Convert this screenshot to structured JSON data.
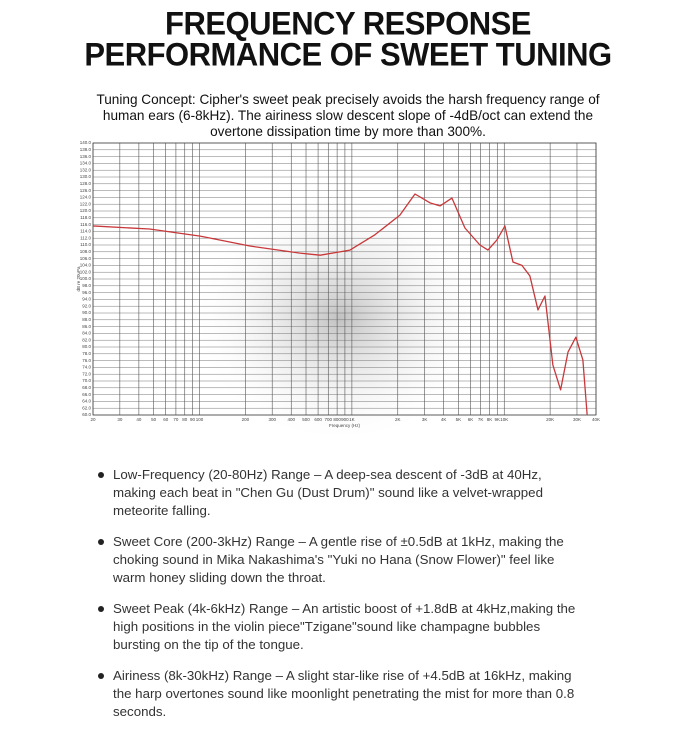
{
  "header": {
    "title_lines": [
      "FREQUENCY RESPONSE",
      "PERFORMANCE OF SWEET TUNING"
    ],
    "intro": "Tuning Concept: Cipher's sweet peak precisely avoids the harsh frequency range of human ears (6-8kHz). The airiness slow descent slope of -4dB/oct can extend the overtone dissipation time by more than 300%."
  },
  "chart_data": {
    "type": "line",
    "x_label": "Frequency (Hz)",
    "y_label": "dB re 20uPa",
    "x": [
      20,
      47,
      101,
      214,
      456,
      620,
      971,
      1416,
      2066,
      2595,
      3254,
      3790,
      4538,
      5520,
      6920,
      7815,
      8954,
      10100,
      11400,
      13060,
      14730,
      16640,
      18500,
      20850,
      23430,
      26200,
      29500,
      32800,
      35000
    ],
    "series": [
      {
        "color": "#c8383a",
        "values": [
          115.6,
          114.7,
          112.6,
          109.7,
          107.6,
          107,
          108.5,
          113,
          118.8,
          125,
          122.4,
          121.5,
          123.8,
          115,
          110,
          108.5,
          111.5,
          115.6,
          105,
          104,
          100.9,
          90.9,
          95,
          74.7,
          67.4,
          78.5,
          82.9,
          76.2,
          60
        ]
      }
    ],
    "log_x": true,
    "grid": true,
    "xlim": [
      20,
      40000
    ],
    "xticks": [
      20,
      30,
      40,
      50,
      60,
      70,
      80,
      90,
      100,
      200,
      300,
      400,
      500,
      600,
      700,
      800,
      900,
      {
        "value": 1000,
        "label": "1K"
      },
      {
        "value": 2000,
        "label": "2K"
      },
      {
        "value": 3000,
        "label": "3K"
      },
      {
        "value": 4000,
        "label": "4K"
      },
      {
        "value": 5000,
        "label": "5K"
      },
      {
        "value": 6000,
        "label": "6K"
      },
      {
        "value": 7000,
        "label": "7K"
      },
      {
        "value": 8000,
        "label": "8K"
      },
      {
        "value": 9000,
        "label": "9K"
      },
      {
        "value": 10000,
        "label": "10K"
      },
      {
        "value": 20000,
        "label": "20K"
      },
      {
        "value": 30000,
        "label": "30K"
      },
      {
        "value": 40000,
        "label": "40K"
      }
    ],
    "ylim": [
      60,
      140
    ],
    "yticks": [
      {
        "value": 140,
        "label": "140.0"
      },
      {
        "value": 138,
        "label": "138.0"
      },
      {
        "value": 136,
        "label": "136.0"
      },
      {
        "value": 134,
        "label": "134.0"
      },
      {
        "value": 132,
        "label": "132.0"
      },
      {
        "value": 130,
        "label": "130.0"
      },
      {
        "value": 128,
        "label": "128.0"
      },
      {
        "value": 126,
        "label": "126.0"
      },
      {
        "value": 124,
        "label": "124.0"
      },
      {
        "value": 122,
        "label": "122.0"
      },
      {
        "value": 120,
        "label": "120.0"
      },
      {
        "value": 118,
        "label": "118.0"
      },
      {
        "value": 116,
        "label": "116.0"
      },
      {
        "value": 114,
        "label": "114.0"
      },
      {
        "value": 112,
        "label": "112.0"
      },
      {
        "value": 110,
        "label": "110.0"
      },
      {
        "value": 108,
        "label": "108.0"
      },
      {
        "value": 106,
        "label": "106.0"
      },
      {
        "value": 104,
        "label": "104.0"
      },
      {
        "value": 102,
        "label": "102.0"
      },
      {
        "value": 100,
        "label": "100.0"
      },
      {
        "value": 98,
        "label": "98.0"
      },
      {
        "value": 96,
        "label": "96.0"
      },
      {
        "value": 94,
        "label": "94.0"
      },
      {
        "value": 92,
        "label": "92.0"
      },
      {
        "value": 90,
        "label": "90.0"
      },
      {
        "value": 88,
        "label": "88.0"
      },
      {
        "value": 86,
        "label": "86.0"
      },
      {
        "value": 84,
        "label": "84.0"
      },
      {
        "value": 82,
        "label": "82.0"
      },
      {
        "value": 80,
        "label": "80.0"
      },
      {
        "value": 78,
        "label": "78.0"
      },
      {
        "value": 76,
        "label": "76.0"
      },
      {
        "value": 74,
        "label": "74.0"
      },
      {
        "value": 72,
        "label": "72.0"
      },
      {
        "value": 70,
        "label": "70.0"
      },
      {
        "value": 68,
        "label": "68.0"
      },
      {
        "value": 66,
        "label": "66.0"
      },
      {
        "value": 64,
        "label": "64.0"
      },
      {
        "value": 62,
        "label": "62.0"
      },
      {
        "value": 60,
        "label": "60.0"
      }
    ]
  },
  "notes": [
    "Low-Frequency (20-80Hz) Range – A deep-sea descent of -3dB at 40Hz, making each beat in \"Chen Gu (Dust Drum)\" sound like a velvet-wrapped meteorite falling.",
    "Sweet Core (200-3kHz) Range – A gentle rise of ±0.5dB at 1kHz, making the choking sound in Mika Nakashima's \"Yuki no Hana (Snow Flower)\" feel like warm honey sliding down the throat.",
    "Sweet Peak (4k-6kHz) Range – An artistic boost of +1.8dB at 4kHz,making the high positions in the violin piece\"Tzigane\"sound like champagne bubbles bursting on the tip of the tongue.",
    "Airiness (8k-30kHz) Range – A slight star-like rise of +4.5dB at 16kHz, making the harp overtones sound like moonlight penetrating the mist for more than 0.8 seconds."
  ]
}
